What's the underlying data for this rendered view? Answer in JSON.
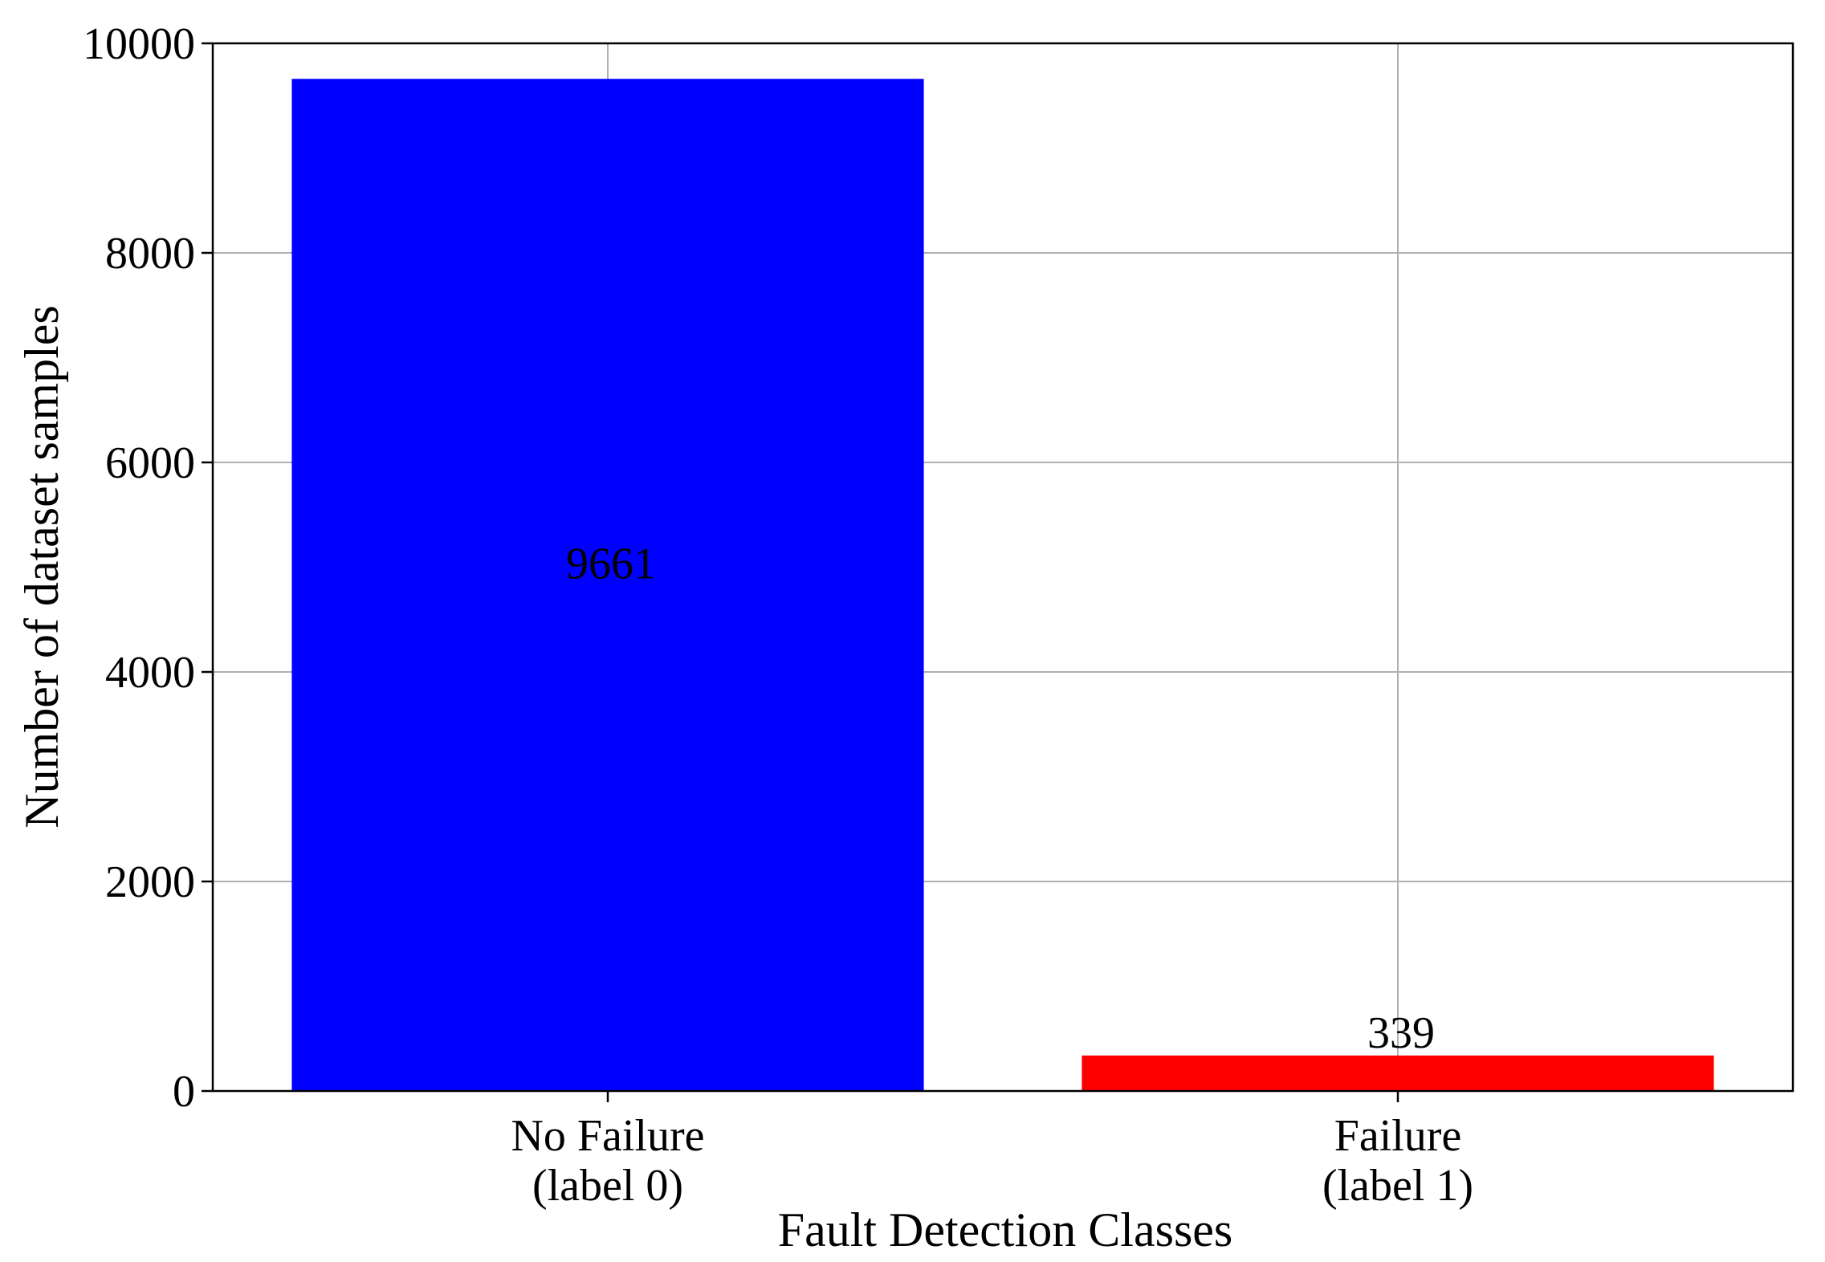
{
  "chart_data": {
    "type": "bar",
    "title": "",
    "xlabel": "Fault Detection Classes",
    "ylabel": "Number of dataset samples",
    "categories": [
      [
        "No Failure",
        "(label 0)"
      ],
      [
        "Failure",
        "(label 1)"
      ]
    ],
    "values": [
      9661,
      339
    ],
    "data_labels": [
      "9661",
      "339"
    ],
    "ylim": [
      0,
      10000
    ],
    "yticks": [
      0,
      2000,
      4000,
      6000,
      8000,
      10000
    ],
    "ytick_labels": [
      "0",
      "2000",
      "4000",
      "6000",
      "8000",
      "10000"
    ],
    "grid": true,
    "legend": "none",
    "colors": [
      "#0000ff",
      "#ff0000"
    ]
  }
}
